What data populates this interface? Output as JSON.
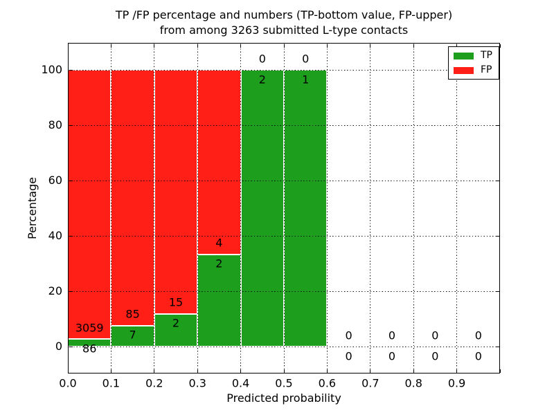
{
  "chart_data": {
    "type": "bar",
    "stacked": true,
    "title_line1": "TP /FP percentage and numbers (TP-bottom value, FP-upper)",
    "title_line2": "from among 3263 submitted L-type contacts",
    "xlabel": "Predicted probability",
    "ylabel": "Percentage",
    "total_submitted_contacts": 3263,
    "bin_width": 0.1,
    "xlim": [
      0.0,
      1.0
    ],
    "ylim_approx": [
      -10,
      110
    ],
    "grid": true,
    "grid_style": "dotted",
    "legend_position": "upper right",
    "legend": [
      {
        "label": "TP",
        "color": "#1d9e1d"
      },
      {
        "label": "FP",
        "color": "#ff1f16"
      }
    ],
    "x_ticks": [
      "0.0",
      "0.1",
      "0.2",
      "0.3",
      "0.4",
      "0.5",
      "0.6",
      "0.7",
      "0.8",
      "0.9"
    ],
    "y_ticks": [
      "0",
      "20",
      "40",
      "60",
      "80",
      "100"
    ],
    "bins": [
      {
        "range": [
          0.0,
          0.1
        ],
        "tp": 86,
        "fp": 3059,
        "tp_pct": 2.73,
        "fp_pct": 97.27
      },
      {
        "range": [
          0.1,
          0.2
        ],
        "tp": 7,
        "fp": 85,
        "tp_pct": 7.61,
        "fp_pct": 92.39
      },
      {
        "range": [
          0.2,
          0.3
        ],
        "tp": 2,
        "fp": 15,
        "tp_pct": 11.76,
        "fp_pct": 88.24
      },
      {
        "range": [
          0.3,
          0.4
        ],
        "tp": 2,
        "fp": 4,
        "tp_pct": 33.33,
        "fp_pct": 66.67
      },
      {
        "range": [
          0.4,
          0.5
        ],
        "tp": 2,
        "fp": 0,
        "tp_pct": 100.0,
        "fp_pct": 0.0
      },
      {
        "range": [
          0.5,
          0.6
        ],
        "tp": 1,
        "fp": 0,
        "tp_pct": 100.0,
        "fp_pct": 0.0
      },
      {
        "range": [
          0.6,
          0.7
        ],
        "tp": 0,
        "fp": 0,
        "tp_pct": 0.0,
        "fp_pct": 0.0
      },
      {
        "range": [
          0.7,
          0.8
        ],
        "tp": 0,
        "fp": 0,
        "tp_pct": 0.0,
        "fp_pct": 0.0
      },
      {
        "range": [
          0.8,
          0.9
        ],
        "tp": 0,
        "fp": 0,
        "tp_pct": 0.0,
        "fp_pct": 0.0
      },
      {
        "range": [
          0.9,
          1.0
        ],
        "tp": 0,
        "fp": 0,
        "tp_pct": 0.0,
        "fp_pct": 0.0
      }
    ]
  }
}
